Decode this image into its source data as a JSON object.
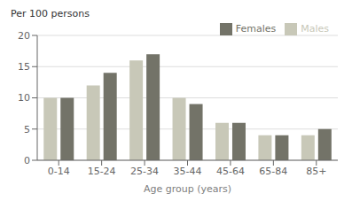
{
  "chart_data": {
    "type": "bar",
    "categories": [
      "0-14",
      "15-24",
      "25-34",
      "35-44",
      "45-64",
      "65-84",
      "85+"
    ],
    "series": [
      {
        "name": "Males",
        "color": "#c8c8b8",
        "values": [
          10,
          12,
          16,
          10,
          6,
          4,
          4
        ]
      },
      {
        "name": "Females",
        "color": "#737368",
        "values": [
          10,
          14,
          17,
          9,
          6,
          4,
          5
        ]
      }
    ],
    "xlabel": "Age group (years)",
    "ylabel": "Per 100 persons",
    "ylim": [
      0,
      20
    ],
    "yticks": [
      0,
      5,
      10,
      15,
      20
    ],
    "grid": true,
    "legend": "upper right"
  }
}
